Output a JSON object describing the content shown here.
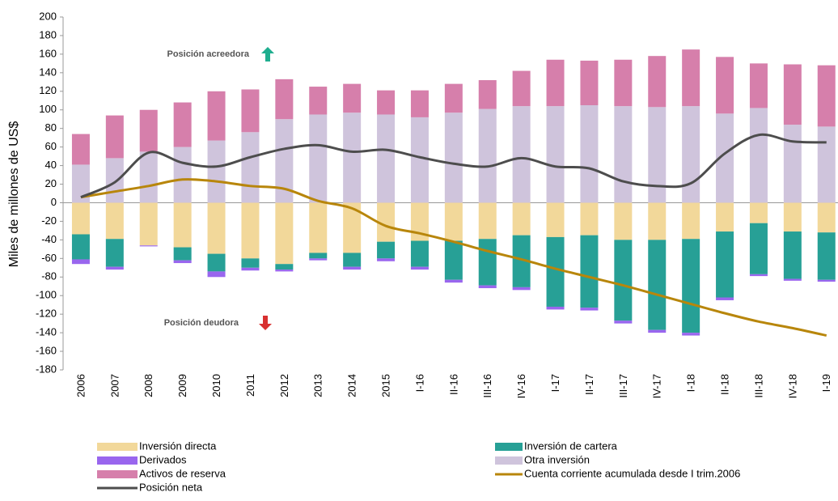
{
  "chart_data": {
    "type": "bar",
    "y_label": "Miles de millones de US$",
    "annotations": [
      "Posición acreedora",
      "Posición deudora"
    ],
    "categories": [
      "2006",
      "2007",
      "2008",
      "2009",
      "2010",
      "2011",
      "2012",
      "2013",
      "2014",
      "2015",
      "I-16",
      "II-16",
      "III-16",
      "IV-16",
      "I-17",
      "II-17",
      "III-17",
      "IV-17",
      "I-18",
      "II-18",
      "III-18",
      "IV-18",
      "I-19"
    ],
    "ylim": [
      -180,
      200
    ],
    "yticks": [
      -180,
      -160,
      -140,
      -120,
      -100,
      -80,
      -60,
      -40,
      -20,
      0,
      20,
      40,
      60,
      80,
      100,
      120,
      140,
      160,
      180,
      200
    ],
    "series": [
      {
        "name": "Inversión directa",
        "type": "bar",
        "color": "#f2d89a",
        "values": [
          -34,
          -39,
          -46,
          -48,
          -55,
          -60,
          -66,
          -54,
          -54,
          -42,
          -41,
          -41,
          -39,
          -35,
          -37,
          -35,
          -40,
          -40,
          -39,
          -31,
          -22,
          -31,
          -32
        ]
      },
      {
        "name": "Inversión de cartera",
        "type": "bar",
        "color": "#27a096",
        "values": [
          -27,
          -30,
          0,
          -14,
          -19,
          -10,
          -6,
          -6,
          -15,
          -18,
          -28,
          -42,
          -50,
          -56,
          -75,
          -78,
          -87,
          -97,
          -101,
          -71,
          -55,
          -51,
          -51
        ]
      },
      {
        "name": "Derivados",
        "type": "bar",
        "color": "#9966ee",
        "values": [
          -5,
          -3,
          -1,
          -3,
          -6,
          -3,
          -2,
          -2,
          -3,
          -3,
          -3,
          -3,
          -3,
          -3,
          -3,
          -3,
          -3,
          -3,
          -3,
          -3,
          -2,
          -2,
          -2
        ]
      },
      {
        "name": "Otra inversión",
        "type": "bar",
        "color": "#cfc4dc",
        "values": [
          41,
          48,
          55,
          60,
          67,
          76,
          90,
          95,
          97,
          95,
          92,
          97,
          101,
          104,
          104,
          105,
          104,
          103,
          104,
          96,
          102,
          84,
          82
        ]
      },
      {
        "name": "Activos de reserva",
        "type": "bar",
        "color": "#d67fab",
        "values": [
          33,
          46,
          45,
          48,
          53,
          46,
          43,
          30,
          31,
          26,
          29,
          31,
          31,
          38,
          50,
          48,
          50,
          55,
          61,
          61,
          48,
          65,
          66
        ]
      },
      {
        "name": "Cuenta corriente acumulada desde I trim.2006",
        "type": "line",
        "color": "#b8860b",
        "values": [
          6,
          12,
          18,
          25,
          23,
          18,
          15,
          2,
          -6,
          -25,
          -33,
          -42,
          -52,
          -61,
          -71,
          -80,
          -89,
          -99,
          -109,
          -119,
          -128,
          -135,
          -143
        ]
      },
      {
        "name": "Posición neta",
        "type": "line",
        "color": "#4d4d4d",
        "values": [
          6,
          22,
          54,
          43,
          39,
          49,
          58,
          62,
          55,
          57,
          49,
          42,
          39,
          48,
          39,
          37,
          23,
          18,
          21,
          53,
          73,
          66,
          65
        ]
      }
    ]
  }
}
